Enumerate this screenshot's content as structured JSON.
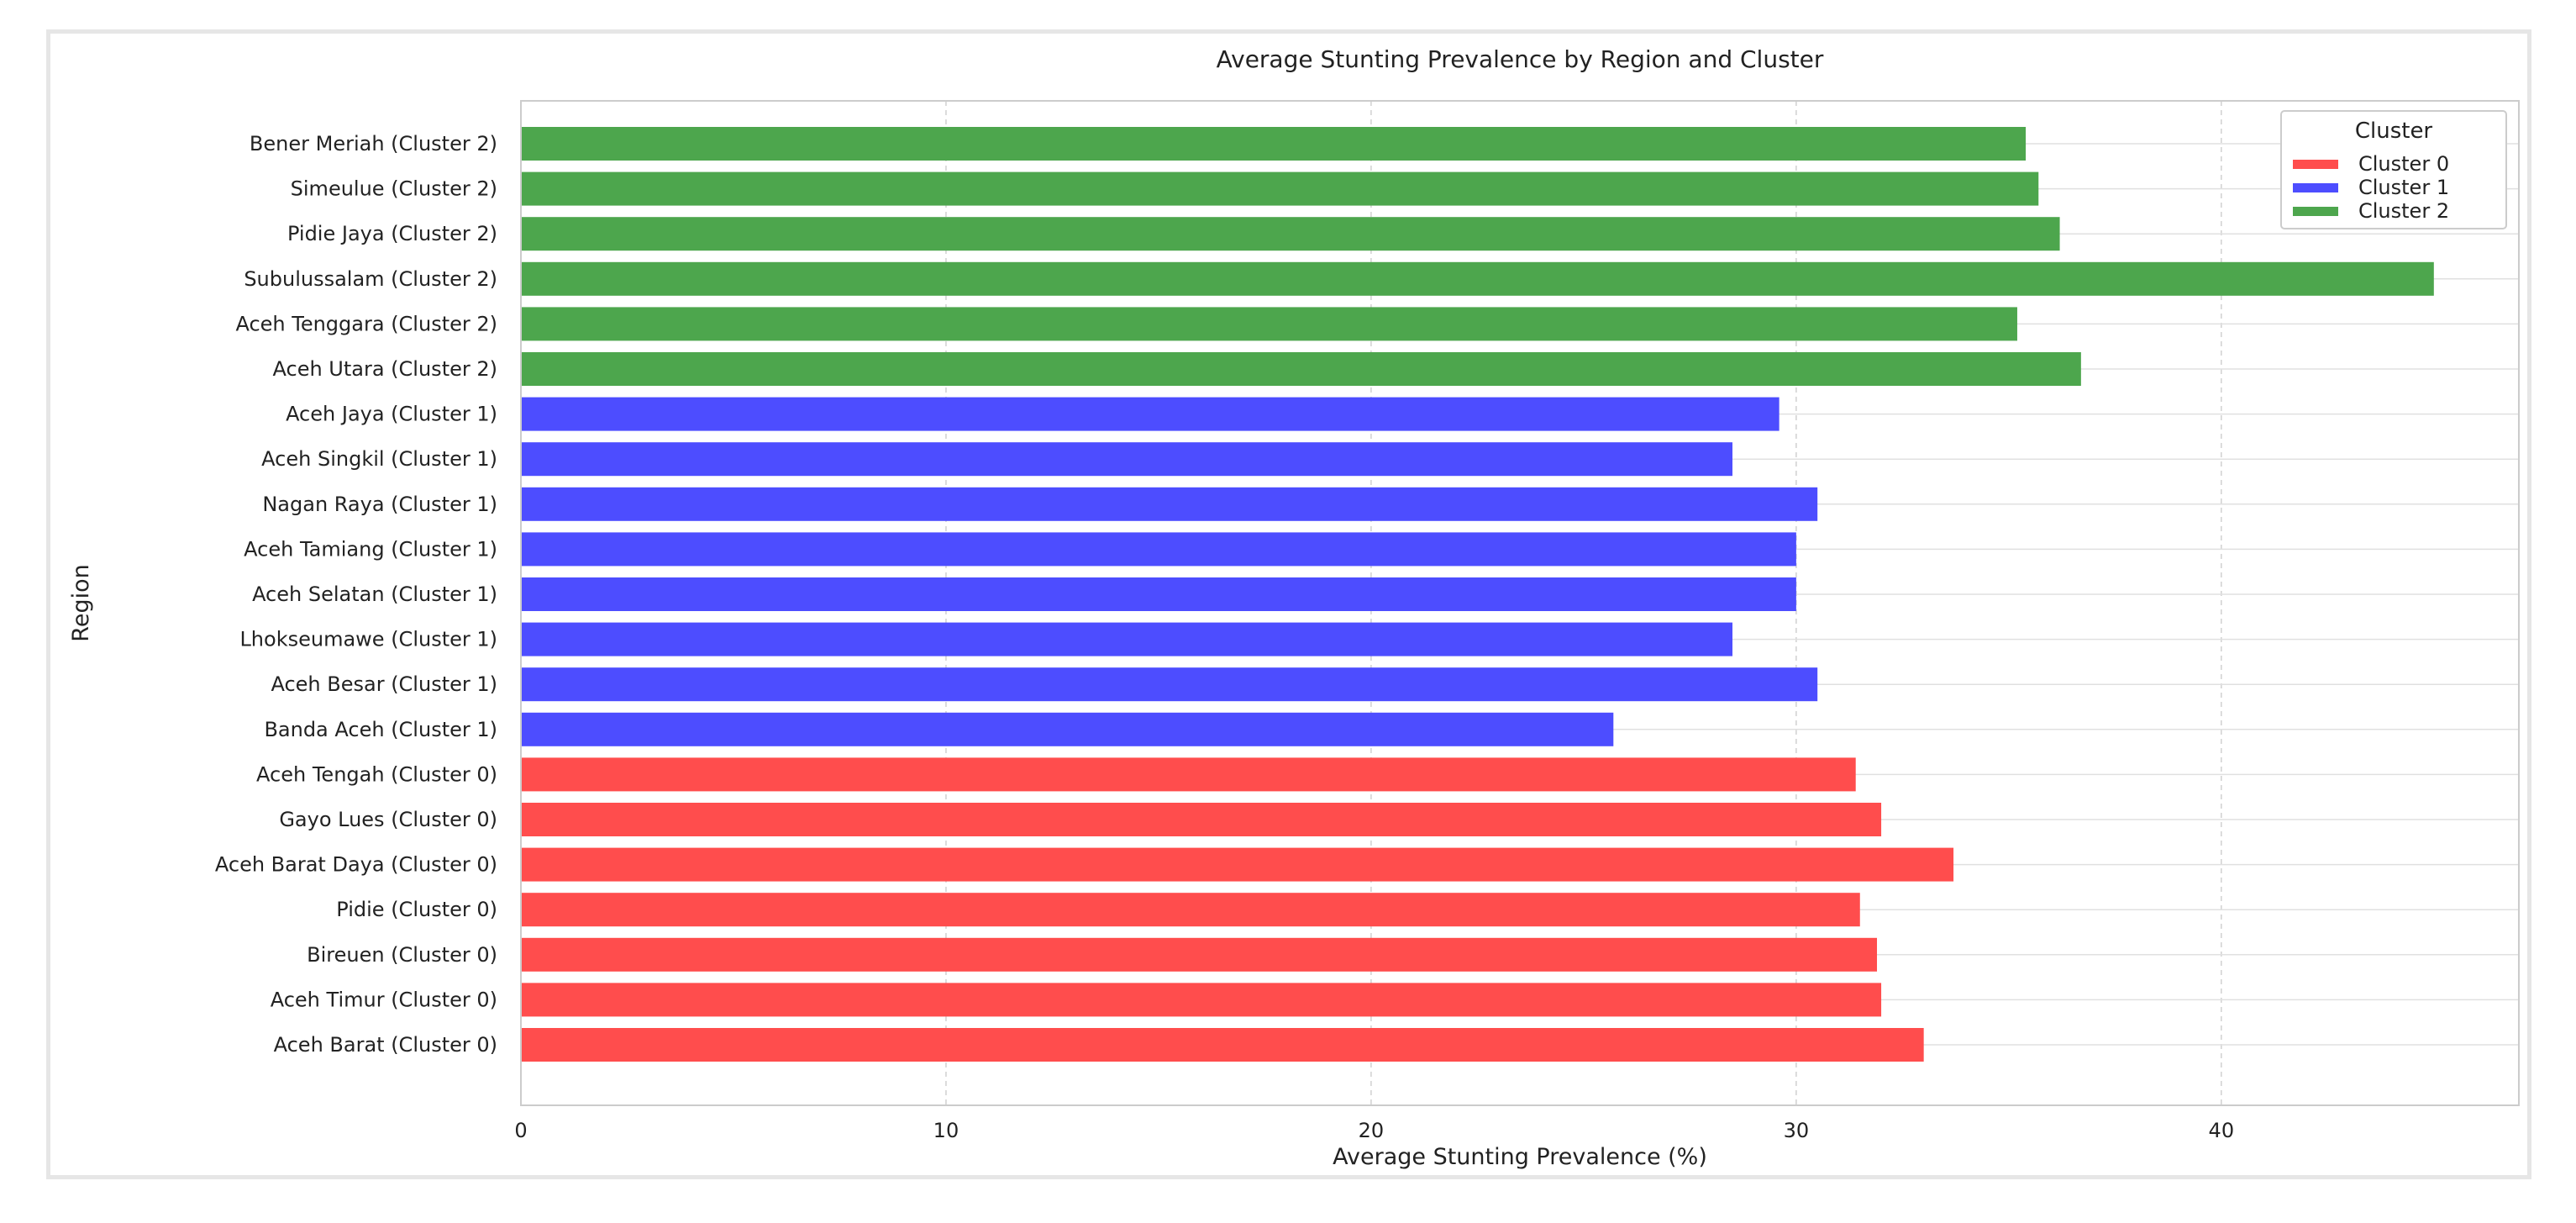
{
  "chart_data": {
    "type": "bar",
    "orientation": "horizontal",
    "title": "Average Stunting Prevalence by Region and Cluster",
    "xlabel": "Average Stunting Prevalence (%)",
    "ylabel": "Region",
    "xlim": [
      0,
      47
    ],
    "xticks": [
      0,
      10,
      20,
      30,
      40
    ],
    "grid": true,
    "legend": {
      "title": "Cluster",
      "placement": "top-right",
      "entries": [
        {
          "label": "Cluster 0",
          "color": "#ff4d4d"
        },
        {
          "label": "Cluster 1",
          "color": "#4d4dff"
        },
        {
          "label": "Cluster 2",
          "color": "#4da64d"
        }
      ]
    },
    "bars": [
      {
        "label": "Bener Meriah (Cluster 2)",
        "value": 35.4,
        "cluster": 2
      },
      {
        "label": "Simeulue (Cluster 2)",
        "value": 35.7,
        "cluster": 2
      },
      {
        "label": "Pidie Jaya (Cluster 2)",
        "value": 36.2,
        "cluster": 2
      },
      {
        "label": "Subulussalam (Cluster 2)",
        "value": 45.0,
        "cluster": 2
      },
      {
        "label": "Aceh Tenggara (Cluster 2)",
        "value": 35.2,
        "cluster": 2
      },
      {
        "label": "Aceh Utara (Cluster 2)",
        "value": 36.7,
        "cluster": 2
      },
      {
        "label": "Aceh Jaya (Cluster 1)",
        "value": 29.6,
        "cluster": 1
      },
      {
        "label": "Aceh Singkil (Cluster 1)",
        "value": 28.5,
        "cluster": 1
      },
      {
        "label": "Nagan Raya (Cluster 1)",
        "value": 30.5,
        "cluster": 1
      },
      {
        "label": "Aceh Tamiang (Cluster 1)",
        "value": 30.0,
        "cluster": 1
      },
      {
        "label": "Aceh Selatan (Cluster 1)",
        "value": 30.0,
        "cluster": 1
      },
      {
        "label": "Lhokseumawe (Cluster 1)",
        "value": 28.5,
        "cluster": 1
      },
      {
        "label": "Aceh Besar (Cluster 1)",
        "value": 30.5,
        "cluster": 1
      },
      {
        "label": "Banda Aceh (Cluster 1)",
        "value": 25.7,
        "cluster": 1
      },
      {
        "label": "Aceh Tengah (Cluster 0)",
        "value": 31.4,
        "cluster": 0
      },
      {
        "label": "Gayo Lues (Cluster 0)",
        "value": 32.0,
        "cluster": 0
      },
      {
        "label": "Aceh Barat Daya (Cluster 0)",
        "value": 33.7,
        "cluster": 0
      },
      {
        "label": "Pidie (Cluster 0)",
        "value": 31.5,
        "cluster": 0
      },
      {
        "label": "Bireuen (Cluster 0)",
        "value": 31.9,
        "cluster": 0
      },
      {
        "label": "Aceh Timur (Cluster 0)",
        "value": 32.0,
        "cluster": 0
      },
      {
        "label": "Aceh Barat (Cluster 0)",
        "value": 33.0,
        "cluster": 0
      }
    ]
  }
}
